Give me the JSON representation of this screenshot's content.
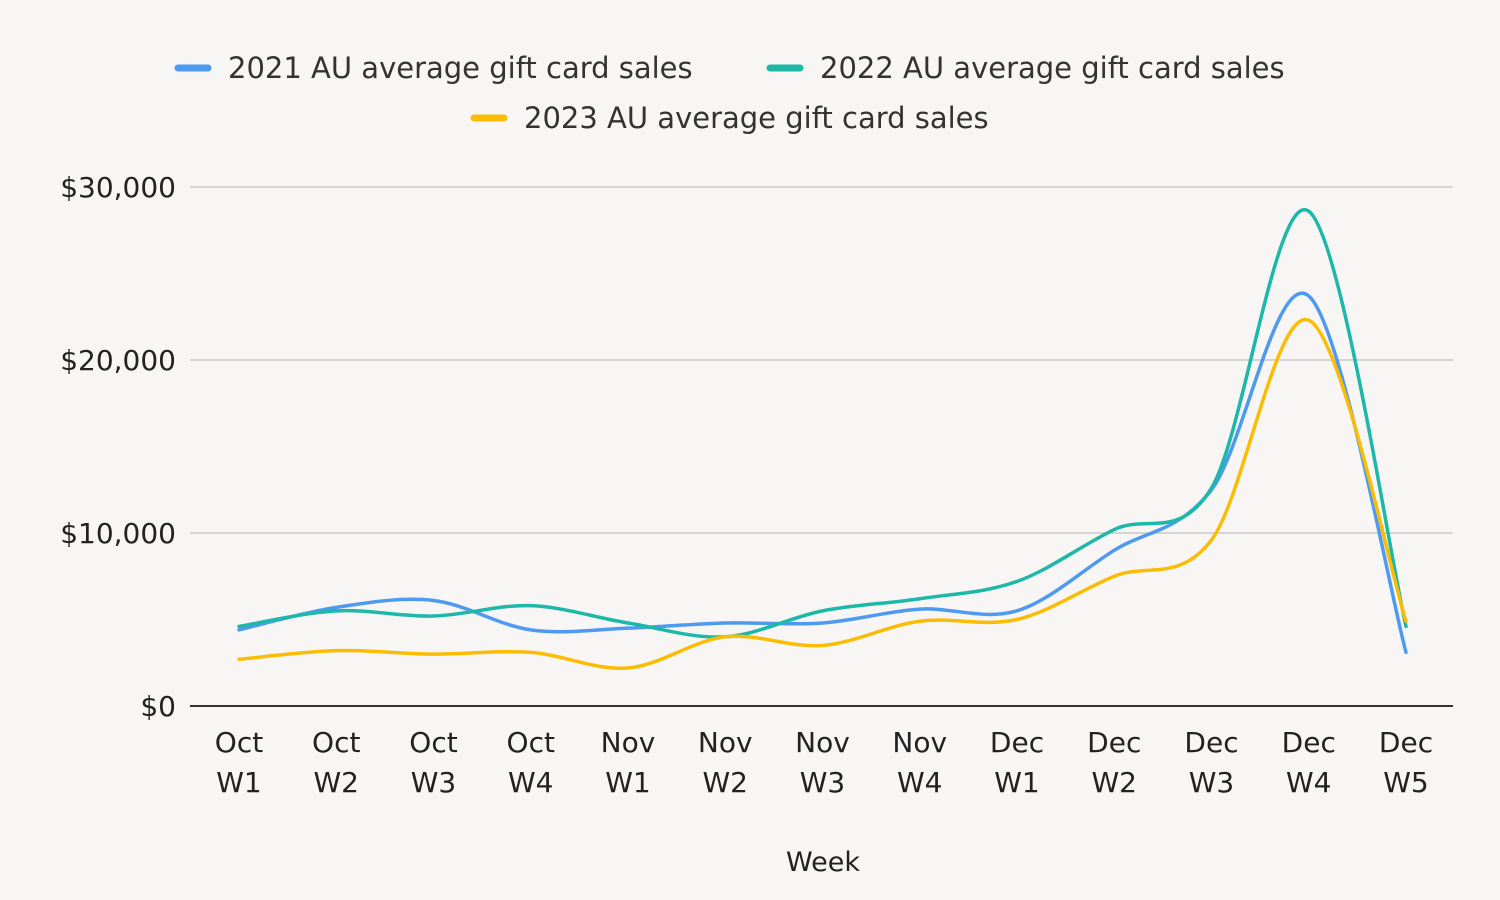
{
  "chart_data": {
    "type": "line",
    "title": "",
    "xlabel": "Week",
    "ylabel": "",
    "ylim": [
      0,
      30000
    ],
    "yticks": [
      0,
      10000,
      20000,
      30000
    ],
    "ytick_labels": [
      "$0",
      "$10,000",
      "$20,000",
      "$30,000"
    ],
    "grid": true,
    "legend_position": "top-center",
    "categories": [
      [
        "Oct",
        "W1"
      ],
      [
        "Oct",
        "W2"
      ],
      [
        "Oct",
        "W3"
      ],
      [
        "Oct",
        "W4"
      ],
      [
        "Nov",
        "W1"
      ],
      [
        "Nov",
        "W2"
      ],
      [
        "Nov",
        "W3"
      ],
      [
        "Nov",
        "W4"
      ],
      [
        "Dec",
        "W1"
      ],
      [
        "Dec",
        "W2"
      ],
      [
        "Dec",
        "W3"
      ],
      [
        "Dec",
        "W4"
      ],
      [
        "Dec",
        "W5"
      ]
    ],
    "series": [
      {
        "name": "2021 AU average gift card sales",
        "color": "#4e9af1",
        "values": [
          4400,
          5700,
          6100,
          4400,
          4500,
          4800,
          4800,
          5600,
          5500,
          9000,
          12500,
          23700,
          3100
        ]
      },
      {
        "name": "2022 AU average gift card sales",
        "color": "#1db8a8",
        "values": [
          4600,
          5500,
          5200,
          5800,
          4800,
          4000,
          5500,
          6200,
          7200,
          10200,
          12600,
          28600,
          4600
        ]
      },
      {
        "name": "2023 AU average gift card sales",
        "color": "#fbbc04",
        "values": [
          2700,
          3200,
          3000,
          3100,
          2200,
          4000,
          3500,
          4900,
          5000,
          7500,
          9600,
          22300,
          4900
        ]
      }
    ]
  }
}
